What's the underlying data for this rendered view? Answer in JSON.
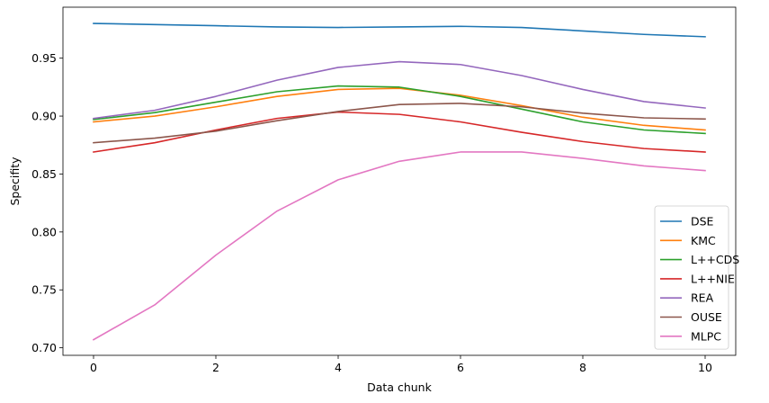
{
  "chart_data": {
    "type": "line",
    "title": "",
    "xlabel": "Data chunk",
    "ylabel": "Specifity",
    "x": [
      0,
      1,
      2,
      3,
      4,
      5,
      6,
      7,
      8,
      9,
      10
    ],
    "xlim": [
      -0.5,
      10.5
    ],
    "ylim": [
      0.6935,
      0.994
    ],
    "xticks": [
      0,
      2,
      4,
      6,
      8,
      10
    ],
    "yticks": [
      0.7,
      0.75,
      0.8,
      0.85,
      0.9,
      0.95
    ],
    "ytick_labels": [
      "0.70",
      "0.75",
      "0.80",
      "0.85",
      "0.90",
      "0.95"
    ],
    "grid": false,
    "legend_position": "lower-right",
    "series": [
      {
        "name": "DSE",
        "color": "#1f77b4",
        "values": [
          0.98,
          0.979,
          0.978,
          0.977,
          0.9765,
          0.977,
          0.9775,
          0.9765,
          0.9735,
          0.9705,
          0.9685
        ]
      },
      {
        "name": "KMC",
        "color": "#ff7f0e",
        "values": [
          0.895,
          0.9,
          0.908,
          0.917,
          0.923,
          0.924,
          0.918,
          0.909,
          0.899,
          0.892,
          0.888
        ]
      },
      {
        "name": "L++CDS",
        "color": "#2ca02c",
        "values": [
          0.897,
          0.903,
          0.912,
          0.921,
          0.926,
          0.925,
          0.917,
          0.906,
          0.895,
          0.888,
          0.885
        ]
      },
      {
        "name": "L++NIE",
        "color": "#d62728",
        "values": [
          0.869,
          0.877,
          0.888,
          0.898,
          0.9035,
          0.9015,
          0.895,
          0.886,
          0.878,
          0.872,
          0.869
        ]
      },
      {
        "name": "REA",
        "color": "#9467bd",
        "values": [
          0.898,
          0.905,
          0.917,
          0.931,
          0.942,
          0.947,
          0.9445,
          0.935,
          0.923,
          0.9125,
          0.907
        ]
      },
      {
        "name": "OUSE",
        "color": "#8c564b",
        "values": [
          0.877,
          0.881,
          0.887,
          0.896,
          0.904,
          0.91,
          0.911,
          0.908,
          0.9025,
          0.8985,
          0.8975
        ]
      },
      {
        "name": "MLPC",
        "color": "#e377c2",
        "values": [
          0.707,
          0.737,
          0.78,
          0.818,
          0.845,
          0.861,
          0.869,
          0.869,
          0.8635,
          0.857,
          0.853
        ]
      }
    ]
  }
}
